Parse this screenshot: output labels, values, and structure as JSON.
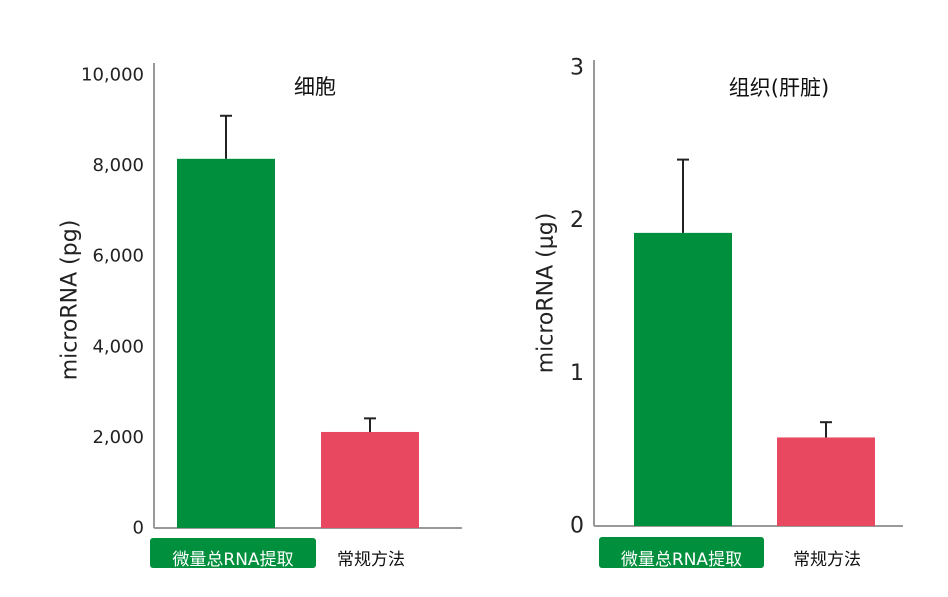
{
  "colors": {
    "green": "#008f3c",
    "red": "#e84860",
    "axis": "#999999",
    "error_bar": "#222222",
    "label_on_green": "#ffffff",
    "label_plain": "#111111"
  },
  "chart_data": [
    {
      "type": "bar",
      "title": "细胞",
      "ylabel": "microRNA (pg)",
      "xlabel": "",
      "ylim": [
        0,
        10000
      ],
      "yticks": [
        0,
        2000,
        4000,
        6000,
        8000,
        10000
      ],
      "ytick_labels": [
        "0",
        "2,000",
        "4,000",
        "6,000",
        "8,000",
        "10,000"
      ],
      "categories": [
        "微量总RNA提取",
        "常规方法"
      ],
      "values": [
        8150,
        2120
      ],
      "error_upper": [
        9100,
        2420
      ],
      "bar_colors": [
        "#008f3c",
        "#e84860"
      ],
      "category_label_style": [
        "highlight",
        "plain"
      ],
      "grid": false
    },
    {
      "type": "bar",
      "title": "组织(肝脏)",
      "ylabel": "microRNA (μg)",
      "xlabel": "",
      "ylim": [
        0,
        3
      ],
      "yticks": [
        0,
        1,
        2,
        3
      ],
      "ytick_labels": [
        "0",
        "1",
        "2",
        "3"
      ],
      "categories": [
        "微量总RNA提取",
        "常规方法"
      ],
      "values": [
        1.92,
        0.58
      ],
      "error_upper": [
        2.4,
        0.68
      ],
      "bar_colors": [
        "#008f3c",
        "#e84860"
      ],
      "category_label_style": [
        "highlight",
        "plain"
      ],
      "grid": false
    }
  ]
}
